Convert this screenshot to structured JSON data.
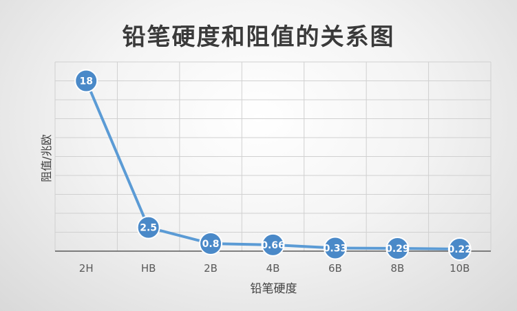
{
  "chart_data": {
    "type": "line",
    "title": "铅笔硬度和阻值的关系图",
    "xlabel": "铅笔硬度",
    "ylabel": "阻值/兆欧",
    "categories": [
      "2H",
      "HB",
      "2B",
      "4B",
      "6B",
      "8B",
      "10B"
    ],
    "series": [
      {
        "values": [
          18,
          2.5,
          0.8,
          0.66,
          0.33,
          0.29,
          0.22
        ]
      }
    ],
    "data_labels": [
      "18",
      "2.5",
      "0.8",
      "0.66",
      "0.33",
      "0.29",
      "0.22"
    ],
    "ylim": [
      0,
      20
    ],
    "grid": true,
    "legend": "none",
    "colors": {
      "line": "#5b9bd5",
      "marker": "#4a89c8",
      "grid": "#d0d0d0",
      "axis": "#595959"
    }
  }
}
